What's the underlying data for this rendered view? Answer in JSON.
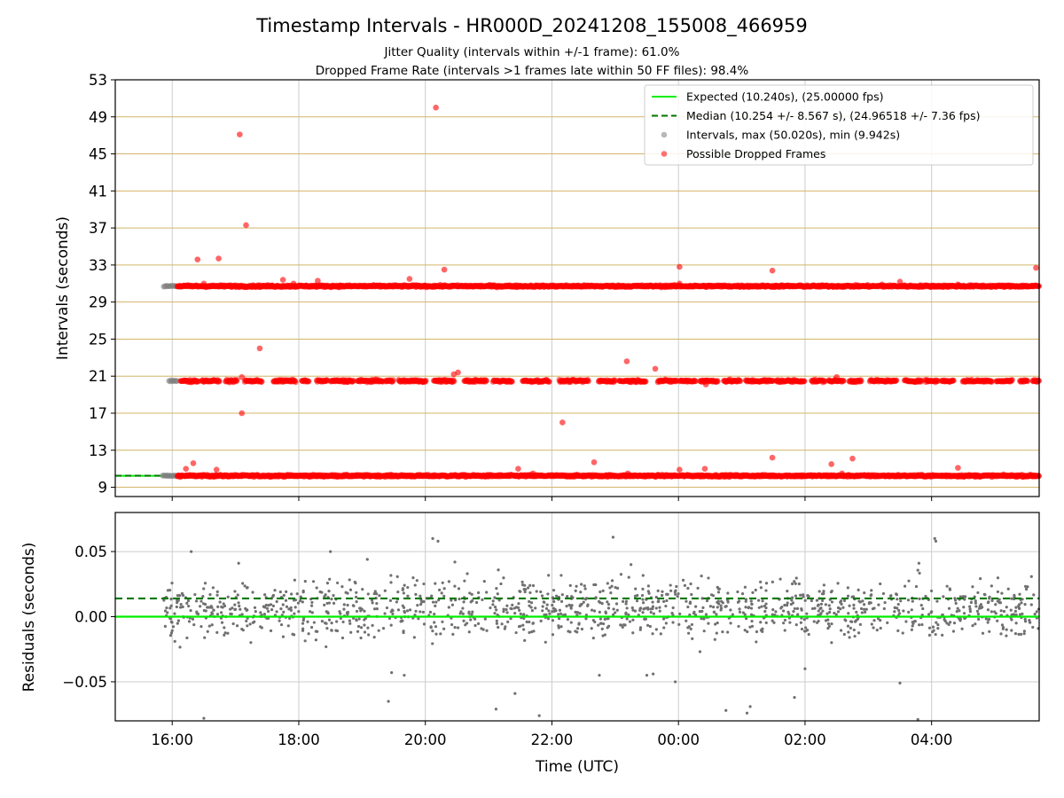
{
  "title": "Timestamp Intervals - HR000D_20241208_155008_466959",
  "subtitle_1": "Jitter Quality (intervals within +/-1 frame): 61.0%",
  "subtitle_2": "Dropped Frame Rate (intervals >1 frames late within 50 FF files): 98.4%",
  "colors": {
    "expected": "#00ee00",
    "median": "#007700",
    "intervals": "#808080",
    "dropped": "#ff0000",
    "hgrid_top": "#d4b56a",
    "grid": "#cccccc",
    "residual_points": "#707070"
  },
  "chart_data": [
    {
      "type": "scatter",
      "panel": "top",
      "title": "",
      "xlabel": "",
      "ylabel": "Intervals (seconds)",
      "ylim": [
        8,
        53
      ],
      "y_ticks": [
        "9",
        "13",
        "17",
        "21",
        "25",
        "29",
        "33",
        "37",
        "41",
        "45",
        "49",
        "53"
      ],
      "x_time_range": [
        "15:06",
        "05:42"
      ],
      "x_tick_times": [
        "16:00",
        "18:00",
        "20:00",
        "22:00",
        "00:00",
        "02:00",
        "04:00"
      ],
      "grid": "horizontal lines at every y tick",
      "legend": {
        "placement": "top-right",
        "entries": [
          {
            "label": "Expected (10.240s), (25.00000 fps)",
            "marker": "solid-line",
            "color": "#00ee00"
          },
          {
            "label": "Median (10.254 +/- 8.567 s), (24.96518 +/- 7.36 fps)",
            "marker": "dashed-line",
            "color": "#007700"
          },
          {
            "label": "Intervals, max (50.020s), min (9.942s)",
            "marker": "dot",
            "color": "#808080"
          },
          {
            "label": "Possible Dropped Frames",
            "marker": "dot",
            "color": "#ff0000"
          }
        ]
      },
      "expected_line": 10.24,
      "median_line": 10.254,
      "series": [
        {
          "name": "Intervals, max (50.020s), min (9.942s)",
          "style": "clusters",
          "clusters": [
            {
              "t_start": "15:51",
              "t_end": "16:07",
              "y": 10.24
            },
            {
              "t_start": "15:52",
              "t_end": "16:05",
              "y": 30.72
            },
            {
              "t_start": "15:57",
              "t_end": "16:05",
              "y": 20.48
            }
          ]
        },
        {
          "name": "Possible Dropped Frames",
          "style": "bands",
          "bands": [
            {
              "t_start": "16:05",
              "t_end": "05:42",
              "y": 10.24,
              "density": "dense"
            },
            {
              "t_start": "16:05",
              "t_end": "05:42",
              "y": 30.72,
              "density": "dense"
            },
            {
              "t_start": "16:08",
              "t_end": "05:42",
              "y": 20.48,
              "density": "gapped"
            }
          ],
          "outliers": [
            {
              "t": "16:13",
              "y": 11.0
            },
            {
              "t": "16:20",
              "y": 11.6
            },
            {
              "t": "16:24",
              "y": 33.6
            },
            {
              "t": "16:30",
              "y": 31.0
            },
            {
              "t": "16:42",
              "y": 10.9
            },
            {
              "t": "16:44",
              "y": 33.7
            },
            {
              "t": "17:04",
              "y": 47.1
            },
            {
              "t": "17:06",
              "y": 20.9
            },
            {
              "t": "17:06",
              "y": 17.0
            },
            {
              "t": "17:10",
              "y": 37.3
            },
            {
              "t": "17:23",
              "y": 24.0
            },
            {
              "t": "17:45",
              "y": 31.4
            },
            {
              "t": "17:55",
              "y": 31.0
            },
            {
              "t": "18:18",
              "y": 31.3
            },
            {
              "t": "19:45",
              "y": 31.5
            },
            {
              "t": "20:10",
              "y": 50.0
            },
            {
              "t": "20:18",
              "y": 32.5
            },
            {
              "t": "20:27",
              "y": 21.2
            },
            {
              "t": "20:31",
              "y": 21.4
            },
            {
              "t": "21:28",
              "y": 11.0
            },
            {
              "t": "21:42",
              "y": 10.5
            },
            {
              "t": "22:10",
              "y": 16.0
            },
            {
              "t": "22:40",
              "y": 11.7
            },
            {
              "t": "23:11",
              "y": 22.6
            },
            {
              "t": "23:12",
              "y": 10.5
            },
            {
              "t": "23:38",
              "y": 21.8
            },
            {
              "t": "00:01",
              "y": 32.8
            },
            {
              "t": "00:01",
              "y": 31.0
            },
            {
              "t": "00:01",
              "y": 10.9
            },
            {
              "t": "00:25",
              "y": 11.0
            },
            {
              "t": "00:26",
              "y": 20.1
            },
            {
              "t": "01:29",
              "y": 32.4
            },
            {
              "t": "01:29",
              "y": 12.2
            },
            {
              "t": "02:25",
              "y": 11.5
            },
            {
              "t": "02:30",
              "y": 20.9
            },
            {
              "t": "02:35",
              "y": 10.5
            },
            {
              "t": "02:45",
              "y": 12.1
            },
            {
              "t": "03:13",
              "y": 30.9
            },
            {
              "t": "03:30",
              "y": 31.2
            },
            {
              "t": "04:25",
              "y": 11.1
            },
            {
              "t": "04:25",
              "y": 30.9
            },
            {
              "t": "05:39",
              "y": 32.7
            },
            {
              "t": "05:40",
              "y": 20.5
            }
          ]
        }
      ]
    },
    {
      "type": "scatter",
      "panel": "bottom",
      "title": "",
      "xlabel": "Time (UTC)",
      "ylabel": "Residuals (seconds)",
      "ylim": [
        -0.08,
        0.08
      ],
      "y_ticks": [
        "0.05",
        "0.00",
        "−0.05"
      ],
      "x_tick_labels": [
        "16:00",
        "18:00",
        "20:00",
        "22:00",
        "00:00",
        "02:00",
        "04:00"
      ],
      "grid": "on",
      "expected_line": 0.0,
      "median_line": 0.014,
      "series": [
        {
          "name": "",
          "distribution": {
            "t_start": "15:51",
            "t_end": "05:42",
            "center": 0.006,
            "spread": 0.012,
            "count": 1300
          },
          "outliers": [
            {
              "t": "16:18",
              "y": 0.05
            },
            {
              "t": "16:30",
              "y": -0.078
            },
            {
              "t": "17:03",
              "y": 0.041
            },
            {
              "t": "18:30",
              "y": 0.05
            },
            {
              "t": "19:05",
              "y": 0.044
            },
            {
              "t": "19:25",
              "y": -0.065
            },
            {
              "t": "19:28",
              "y": -0.043
            },
            {
              "t": "19:40",
              "y": -0.045
            },
            {
              "t": "20:07",
              "y": 0.06
            },
            {
              "t": "20:12",
              "y": 0.058
            },
            {
              "t": "20:28",
              "y": 0.042
            },
            {
              "t": "21:07",
              "y": -0.071
            },
            {
              "t": "21:25",
              "y": -0.059
            },
            {
              "t": "21:48",
              "y": -0.076
            },
            {
              "t": "22:45",
              "y": -0.045
            },
            {
              "t": "22:58",
              "y": 0.061
            },
            {
              "t": "23:15",
              "y": 0.04
            },
            {
              "t": "23:30",
              "y": -0.045
            },
            {
              "t": "23:36",
              "y": -0.044
            },
            {
              "t": "23:57",
              "y": -0.05
            },
            {
              "t": "00:45",
              "y": -0.072
            },
            {
              "t": "01:05",
              "y": -0.074
            },
            {
              "t": "01:08",
              "y": -0.069
            },
            {
              "t": "01:50",
              "y": -0.062
            },
            {
              "t": "02:00",
              "y": -0.04
            },
            {
              "t": "03:30",
              "y": -0.051
            },
            {
              "t": "03:47",
              "y": -0.079
            },
            {
              "t": "04:03",
              "y": 0.06
            },
            {
              "t": "04:04",
              "y": 0.058
            },
            {
              "t": "03:48",
              "y": 0.041
            }
          ]
        }
      ]
    }
  ]
}
